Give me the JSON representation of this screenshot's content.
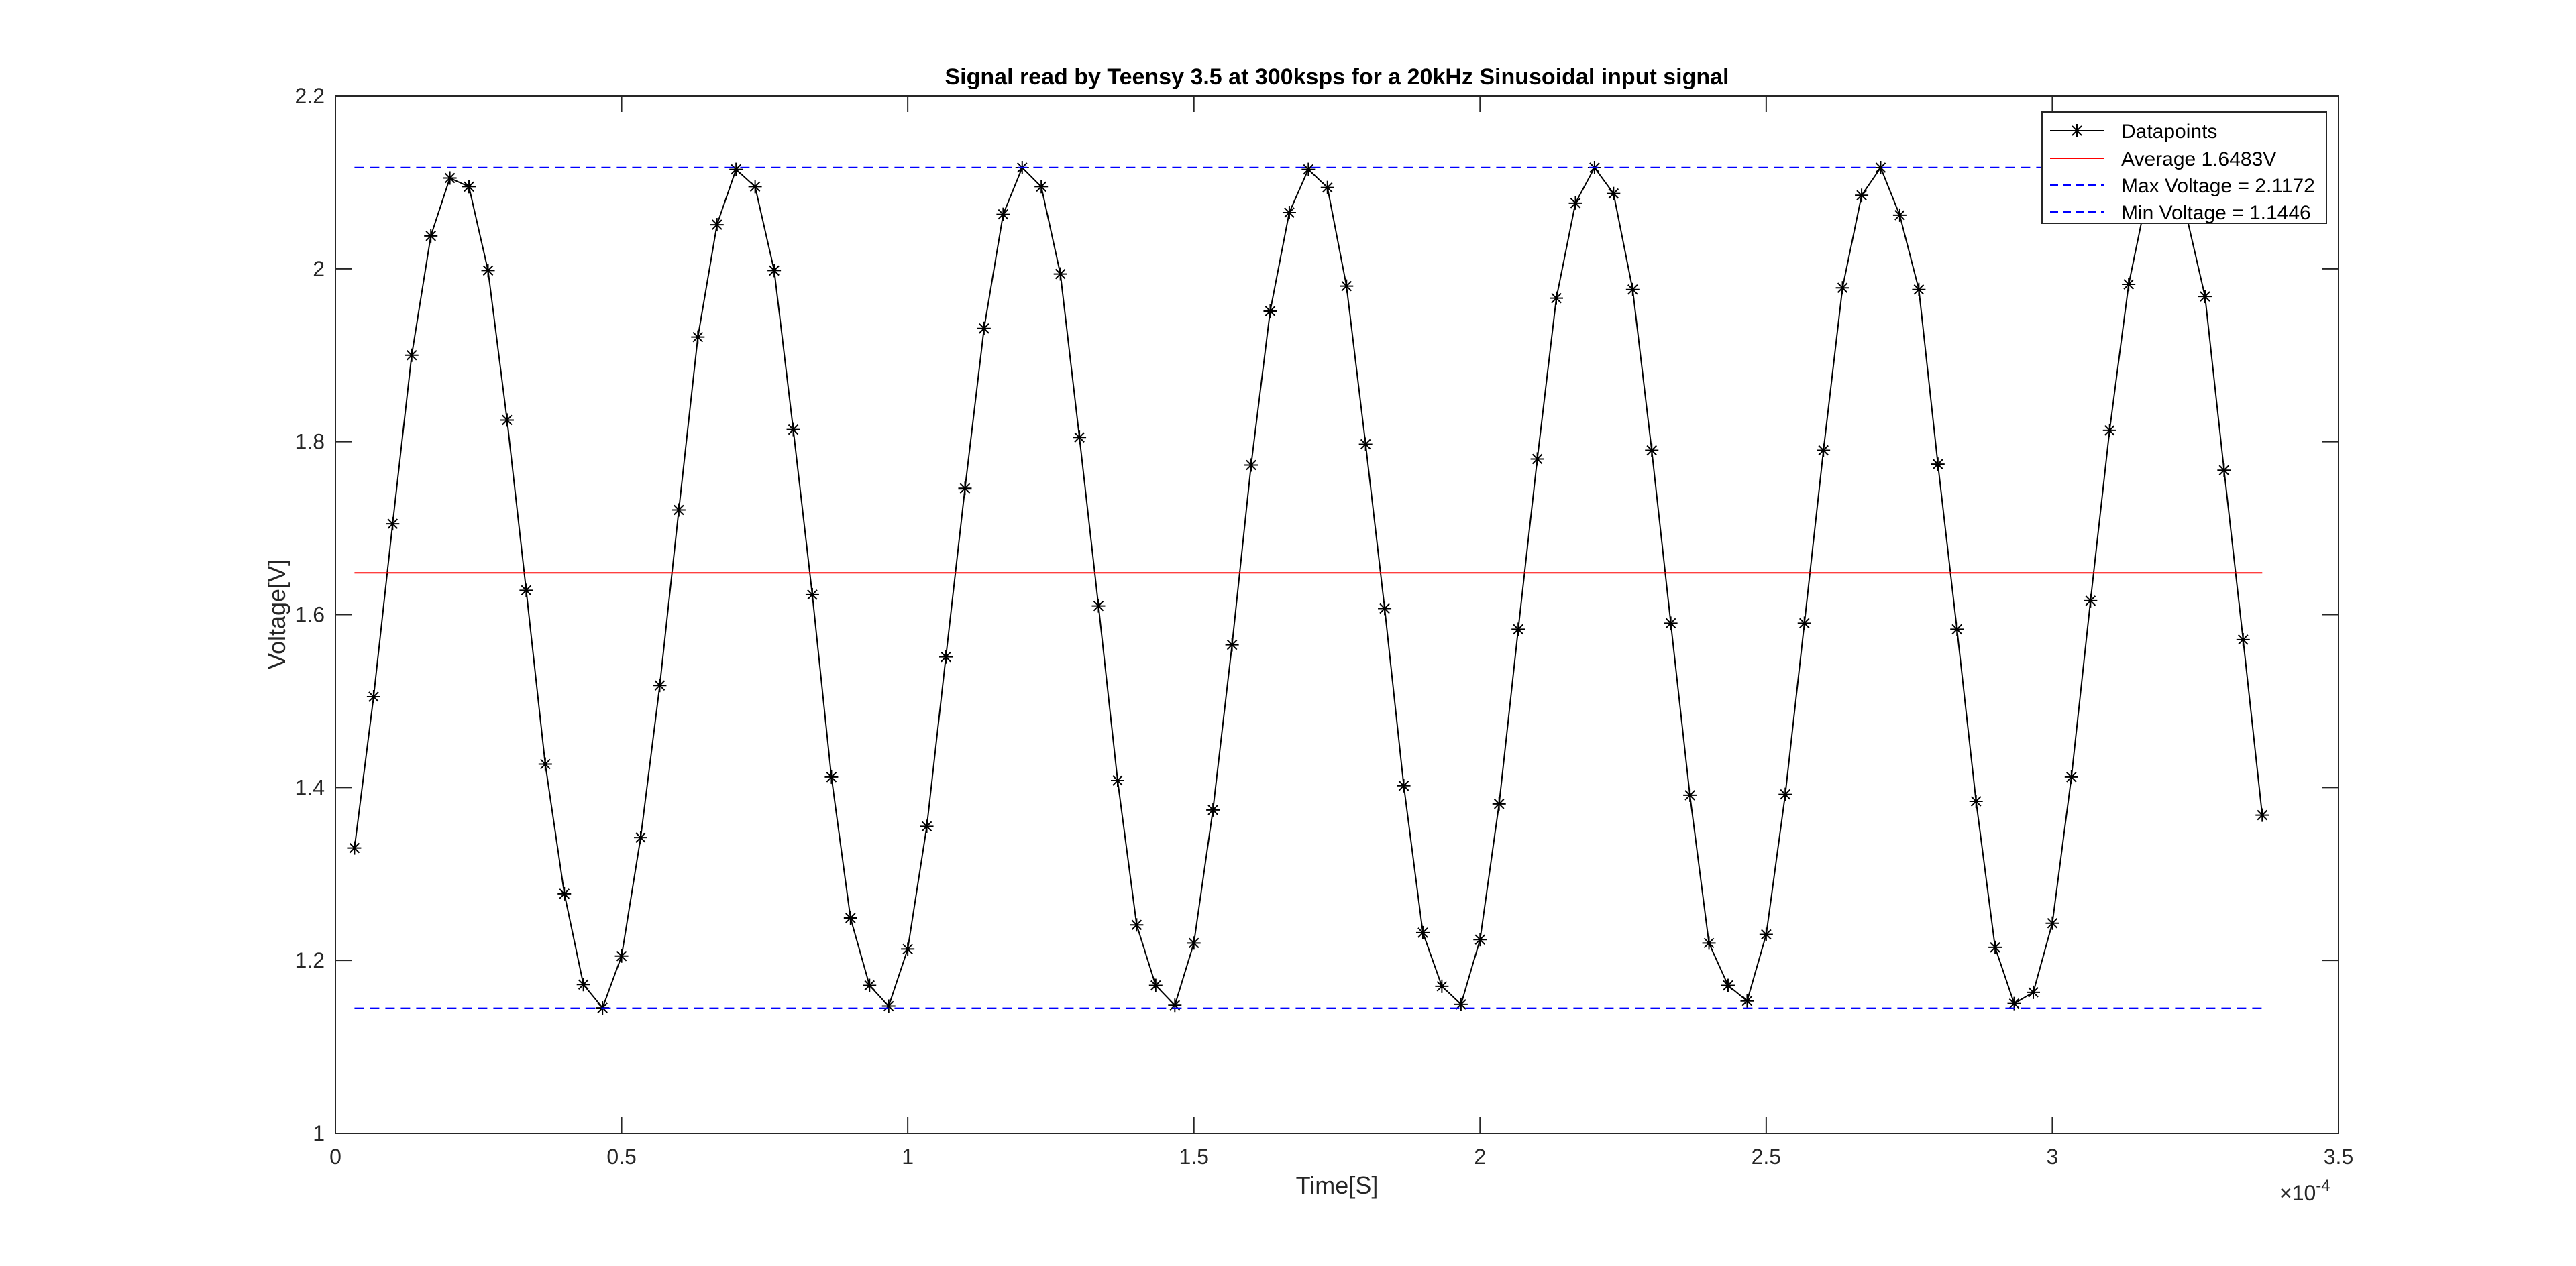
{
  "colors": {
    "background": "#ffffff",
    "axes": "#262626",
    "datapoints": "#000000",
    "average": "#ff0000",
    "max_line": "#0000ff",
    "min_line": "#0000ff"
  },
  "chart_data": {
    "type": "line",
    "title": "Signal read by Teensy 3.5 at 300ksps for a 20kHz Sinusoidal input signal",
    "xlabel": "Time[S]",
    "ylabel": "Voltage[V]",
    "x_exponent_label": "×10",
    "x_exponent_power": "-4",
    "xlim": [
      0,
      3.5
    ],
    "ylim": [
      1,
      2.2
    ],
    "x_scale_factor": 0.0001,
    "xticks": [
      0,
      0.5,
      1,
      1.5,
      2,
      2.5,
      3,
      3.5
    ],
    "xtick_labels": [
      "0",
      "0.5",
      "1",
      "1.5",
      "2",
      "2.5",
      "3",
      "3.5"
    ],
    "yticks": [
      1,
      1.2,
      1.4,
      1.6,
      1.8,
      2,
      2.2
    ],
    "ytick_labels": [
      "1",
      "1.2",
      "1.4",
      "1.6",
      "1.8",
      "2",
      "2.2"
    ],
    "grid": false,
    "box": true,
    "legend_position": "top-right",
    "series": [
      {
        "name": "Datapoints",
        "style": "solid line with asterisk markers",
        "color": "#000000",
        "x": [
          0.0333,
          0.0667,
          0.1,
          0.1333,
          0.1667,
          0.2,
          0.2333,
          0.2667,
          0.3,
          0.3333,
          0.3667,
          0.4,
          0.4333,
          0.4667,
          0.5,
          0.5333,
          0.5667,
          0.6,
          0.6333,
          0.6667,
          0.7,
          0.7333,
          0.7667,
          0.8,
          0.8333,
          0.8667,
          0.9,
          0.9333,
          0.9667,
          1.0,
          1.0333,
          1.0667,
          1.1,
          1.1333,
          1.1667,
          1.2,
          1.2333,
          1.2667,
          1.3,
          1.3333,
          1.3667,
          1.4,
          1.4333,
          1.4667,
          1.5,
          1.5333,
          1.5667,
          1.6,
          1.6333,
          1.6667,
          1.7,
          1.7333,
          1.7667,
          1.8,
          1.8333,
          1.8667,
          1.9,
          1.9333,
          1.9667,
          2.0,
          2.0333,
          2.0667,
          2.1,
          2.1333,
          2.1667,
          2.2,
          2.2333,
          2.2667,
          2.3,
          2.3333,
          2.3667,
          2.4,
          2.4333,
          2.4667,
          2.5,
          2.5333,
          2.5667,
          2.6,
          2.6333,
          2.6667,
          2.7,
          2.7333,
          2.7667,
          2.8,
          2.8333,
          2.8667,
          2.9,
          2.9333,
          2.9667,
          3.0,
          3.0333,
          3.0667,
          3.1,
          3.1333,
          3.1667,
          3.2,
          3.2333,
          3.2667,
          3.3,
          3.3333,
          3.3667
        ],
        "y": [
          1.33,
          1.505,
          1.705,
          1.9,
          2.038,
          2.105,
          2.095,
          1.998,
          1.825,
          1.628,
          1.427,
          1.277,
          1.172,
          1.145,
          1.205,
          1.342,
          1.518,
          1.721,
          1.921,
          2.051,
          2.115,
          2.095,
          1.998,
          1.814,
          1.623,
          1.412,
          1.249,
          1.171,
          1.147,
          1.213,
          1.355,
          1.551,
          1.746,
          1.931,
          2.063,
          2.117,
          2.095,
          1.994,
          1.805,
          1.61,
          1.408,
          1.241,
          1.171,
          1.148,
          1.22,
          1.374,
          1.565,
          1.773,
          1.951,
          2.065,
          2.115,
          2.094,
          1.98,
          1.797,
          1.607,
          1.402,
          1.232,
          1.17,
          1.149,
          1.224,
          1.381,
          1.583,
          1.78,
          1.966,
          2.076,
          2.117,
          2.087,
          1.976,
          1.79,
          1.59,
          1.391,
          1.22,
          1.171,
          1.153,
          1.23,
          1.392,
          1.59,
          1.79,
          1.978,
          2.085,
          2.117,
          2.062,
          1.976,
          1.774,
          1.583,
          1.384,
          1.215,
          1.15,
          1.163,
          1.243,
          1.412,
          1.616,
          1.813,
          1.982,
          2.089,
          2.097,
          2.064,
          1.968,
          1.767,
          1.571,
          1.368
        ]
      },
      {
        "name": "Average 1.6483V",
        "style": "solid",
        "color": "#ff0000",
        "x": [
          0.0333,
          3.3667
        ],
        "y": [
          1.6483,
          1.6483
        ]
      },
      {
        "name": "Max Voltage = 2.1172",
        "style": "dashed",
        "color": "#0000ff",
        "x": [
          0.0333,
          3.3667
        ],
        "y": [
          2.1172,
          2.1172
        ]
      },
      {
        "name": "Min Voltage = 1.1446",
        "style": "dashed",
        "color": "#0000ff",
        "x": [
          0.0333,
          3.3667
        ],
        "y": [
          1.1446,
          1.1446
        ]
      }
    ]
  }
}
